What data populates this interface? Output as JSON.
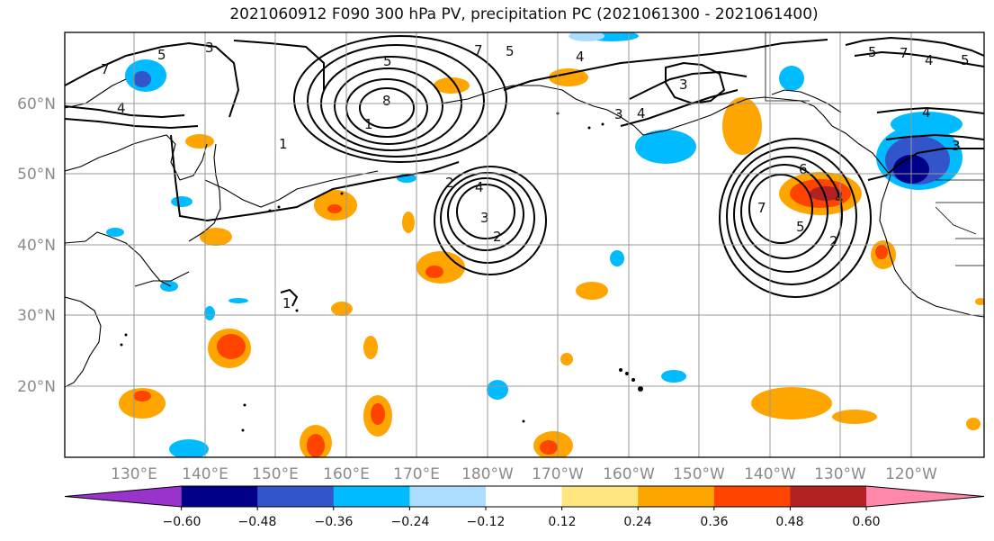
{
  "title": "2021060912 F090 300 hPa PV, precipitation PC (2021061300 - 2021061400)",
  "lat_labels": [
    "60°N",
    "50°N",
    "40°N",
    "30°N",
    "20°N"
  ],
  "lon_labels": [
    "130°E",
    "140°E",
    "150°E",
    "160°E",
    "170°E",
    "180°W",
    "170°W",
    "160°W",
    "150°W",
    "140°W",
    "130°W",
    "120°W"
  ],
  "colorbar": {
    "ticks": [
      "−0.60",
      "−0.48",
      "−0.36",
      "−0.24",
      "−0.12",
      "0.12",
      "0.24",
      "0.36",
      "0.48",
      "0.60"
    ],
    "colors": [
      "#9933cc",
      "#000088",
      "#3355cc",
      "#00bbff",
      "#aaddff",
      "#ffffff",
      "#ffe680",
      "#ffa500",
      "#ff4400",
      "#b22222",
      "#ff88aa"
    ]
  },
  "contour_labels": [
    "7",
    "5",
    "3",
    "4",
    "8",
    "5",
    "1",
    "1",
    "4",
    "3",
    "2",
    "7",
    "4",
    "3",
    "5",
    "4",
    "3",
    "6",
    "4",
    "7",
    "5",
    "2",
    "4",
    "3",
    "1",
    "2",
    "5",
    "7",
    "4",
    "5"
  ]
}
